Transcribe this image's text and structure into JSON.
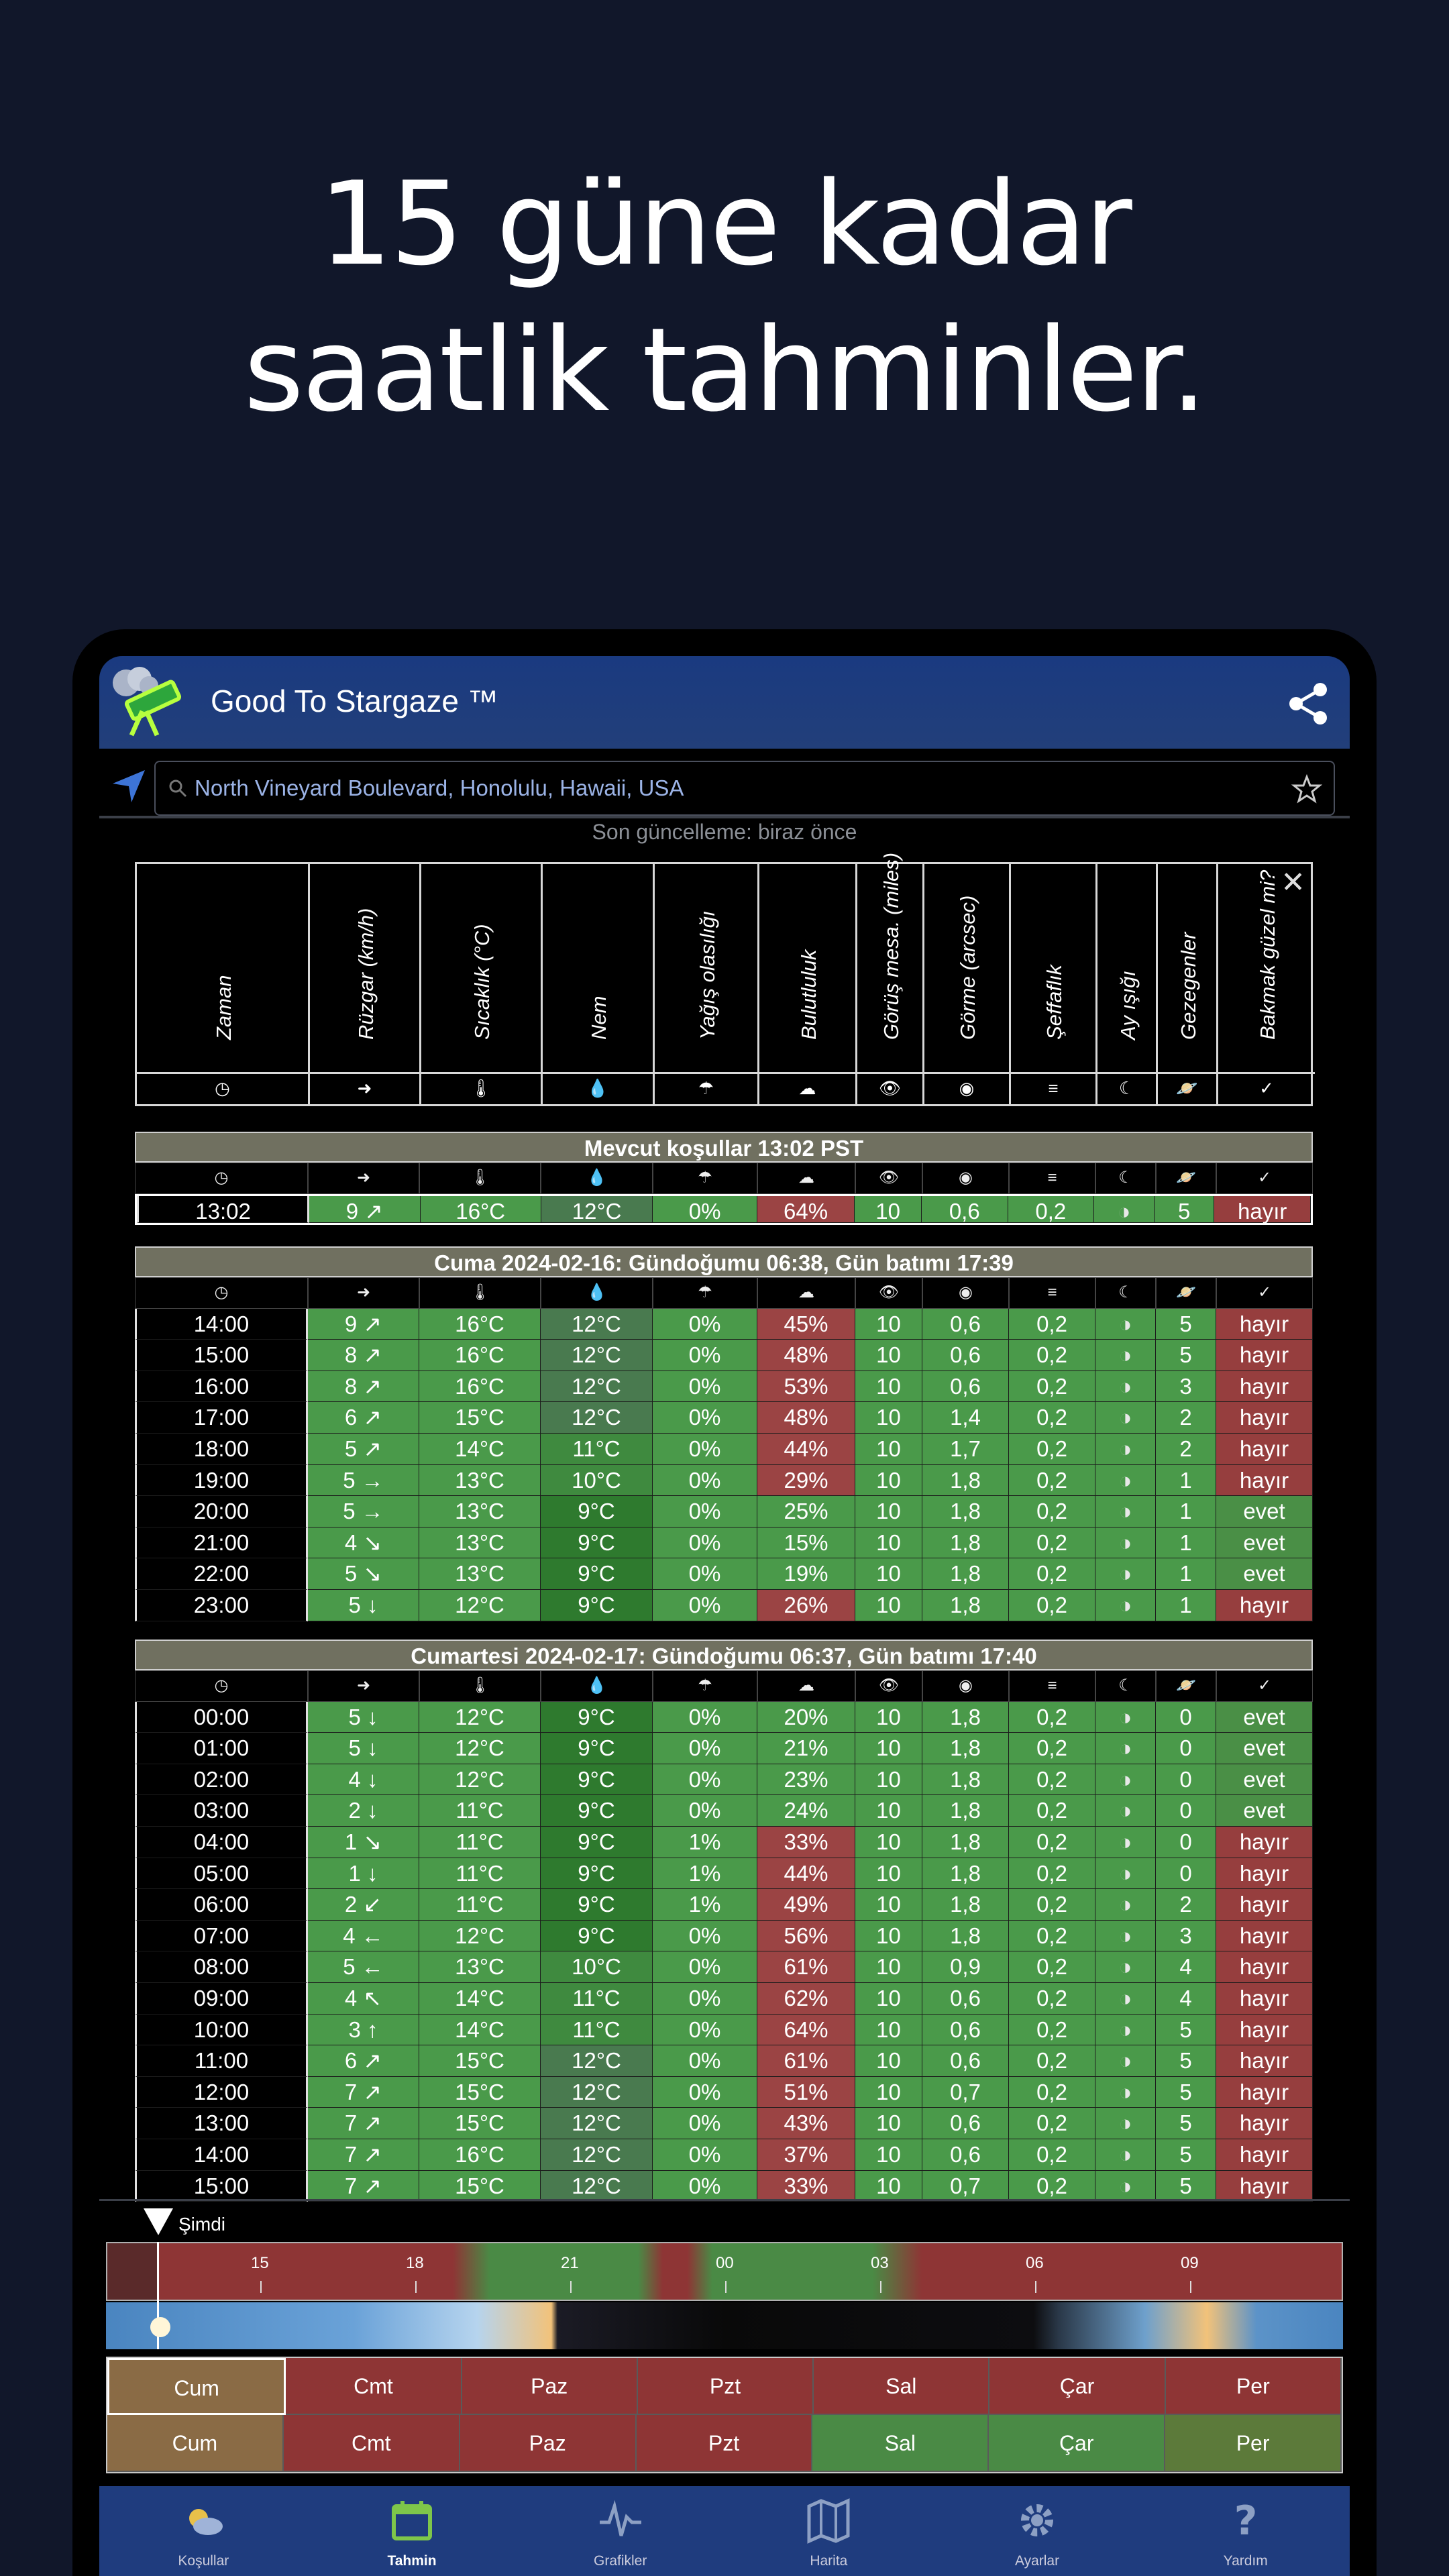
{
  "hero": {
    "line1": "15 güne kadar",
    "line2": "saatlik tahminler."
  },
  "app": {
    "title": "Good To Stargaze ™"
  },
  "search": {
    "value": "North Vineyard Boulevard, Honolulu, Hawaii, USA"
  },
  "updated": "Son güncelleme: biraz önce",
  "columns": [
    "Zaman",
    "Rüzgar (km/h)",
    "Sıcaklık (°C)",
    "Nem",
    "Yağış olasılığı",
    "Bulutluluk",
    "Görüş mesa. (miles)",
    "Görme (arcsec)",
    "Şeffaflık",
    "Ay ışığı",
    "Gezegenler",
    "Bakmak güzel mi?"
  ],
  "column_icons": [
    "clock-icon",
    "wind-icon",
    "thermometer-icon",
    "droplet-icon",
    "rain-icon",
    "cloud-icon",
    "eye-icon",
    "target-icon",
    "lines-icon",
    "moon-icon",
    "planet-icon",
    "check-icon"
  ],
  "current": {
    "title": "Mevcut koşullar 13:02 PST",
    "rows": [
      [
        "13:02",
        "9 ↗",
        "16°C",
        "12°C",
        "0%",
        "64%",
        "10",
        "0,6",
        "0,2",
        "◑",
        "5",
        "hayır"
      ]
    ]
  },
  "day1": {
    "title": "Cuma 2024-02-16: Gündoğumu 06:38, Gün batımı 17:39",
    "rows": [
      [
        "14:00",
        "9 ↗",
        "16°C",
        "12°C",
        "0%",
        "45%",
        "10",
        "0,6",
        "0,2",
        "◑",
        "5",
        "hayır"
      ],
      [
        "15:00",
        "8 ↗",
        "16°C",
        "12°C",
        "0%",
        "48%",
        "10",
        "0,6",
        "0,2",
        "◑",
        "5",
        "hayır"
      ],
      [
        "16:00",
        "8 ↗",
        "16°C",
        "12°C",
        "0%",
        "53%",
        "10",
        "0,6",
        "0,2",
        "◑",
        "3",
        "hayır"
      ],
      [
        "17:00",
        "6 ↗",
        "15°C",
        "12°C",
        "0%",
        "48%",
        "10",
        "1,4",
        "0,2",
        "◑",
        "2",
        "hayır"
      ],
      [
        "18:00",
        "5 ↗",
        "14°C",
        "11°C",
        "0%",
        "44%",
        "10",
        "1,7",
        "0,2",
        "◑",
        "2",
        "hayır"
      ],
      [
        "19:00",
        "5 →",
        "13°C",
        "10°C",
        "0%",
        "29%",
        "10",
        "1,8",
        "0,2",
        "◑",
        "1",
        "hayır"
      ],
      [
        "20:00",
        "5 →",
        "13°C",
        "9°C",
        "0%",
        "25%",
        "10",
        "1,8",
        "0,2",
        "◑",
        "1",
        "evet"
      ],
      [
        "21:00",
        "4 ↘",
        "13°C",
        "9°C",
        "0%",
        "15%",
        "10",
        "1,8",
        "0,2",
        "◑",
        "1",
        "evet"
      ],
      [
        "22:00",
        "5 ↘",
        "13°C",
        "9°C",
        "0%",
        "19%",
        "10",
        "1,8",
        "0,2",
        "◑",
        "1",
        "evet"
      ],
      [
        "23:00",
        "5 ↓",
        "12°C",
        "9°C",
        "0%",
        "26%",
        "10",
        "1,8",
        "0,2",
        "◑",
        "1",
        "hayır"
      ]
    ]
  },
  "day2": {
    "title": "Cumartesi 2024-02-17: Gündoğumu 06:37, Gün batımı 17:40",
    "rows": [
      [
        "00:00",
        "5 ↓",
        "12°C",
        "9°C",
        "0%",
        "20%",
        "10",
        "1,8",
        "0,2",
        "◑",
        "0",
        "evet"
      ],
      [
        "01:00",
        "5 ↓",
        "12°C",
        "9°C",
        "0%",
        "21%",
        "10",
        "1,8",
        "0,2",
        "◑",
        "0",
        "evet"
      ],
      [
        "02:00",
        "4 ↓",
        "12°C",
        "9°C",
        "0%",
        "23%",
        "10",
        "1,8",
        "0,2",
        "◑",
        "0",
        "evet"
      ],
      [
        "03:00",
        "2 ↓",
        "11°C",
        "9°C",
        "0%",
        "24%",
        "10",
        "1,8",
        "0,2",
        "◑",
        "0",
        "evet"
      ],
      [
        "04:00",
        "1 ↘",
        "11°C",
        "9°C",
        "1%",
        "33%",
        "10",
        "1,8",
        "0,2",
        "◑",
        "0",
        "hayır"
      ],
      [
        "05:00",
        "1 ↓",
        "11°C",
        "9°C",
        "1%",
        "44%",
        "10",
        "1,8",
        "0,2",
        "◑",
        "0",
        "hayır"
      ],
      [
        "06:00",
        "2 ↙",
        "11°C",
        "9°C",
        "1%",
        "49%",
        "10",
        "1,8",
        "0,2",
        "◑",
        "2",
        "hayır"
      ],
      [
        "07:00",
        "4 ←",
        "12°C",
        "9°C",
        "0%",
        "56%",
        "10",
        "1,8",
        "0,2",
        "◑",
        "3",
        "hayır"
      ],
      [
        "08:00",
        "5 ←",
        "13°C",
        "10°C",
        "0%",
        "61%",
        "10",
        "0,9",
        "0,2",
        "◑",
        "4",
        "hayır"
      ],
      [
        "09:00",
        "4 ↖",
        "14°C",
        "11°C",
        "0%",
        "62%",
        "10",
        "0,6",
        "0,2",
        "◑",
        "4",
        "hayır"
      ],
      [
        "10:00",
        "3 ↑",
        "14°C",
        "11°C",
        "0%",
        "64%",
        "10",
        "0,6",
        "0,2",
        "◑",
        "5",
        "hayır"
      ],
      [
        "11:00",
        "6 ↗",
        "15°C",
        "12°C",
        "0%",
        "61%",
        "10",
        "0,6",
        "0,2",
        "◑",
        "5",
        "hayır"
      ],
      [
        "12:00",
        "7 ↗",
        "15°C",
        "12°C",
        "0%",
        "51%",
        "10",
        "0,7",
        "0,2",
        "◑",
        "5",
        "hayır"
      ],
      [
        "13:00",
        "7 ↗",
        "15°C",
        "12°C",
        "0%",
        "43%",
        "10",
        "0,6",
        "0,2",
        "◑",
        "5",
        "hayır"
      ],
      [
        "14:00",
        "7 ↗",
        "16°C",
        "12°C",
        "0%",
        "37%",
        "10",
        "0,6",
        "0,2",
        "◑",
        "5",
        "hayır"
      ],
      [
        "15:00",
        "7 ↗",
        "15°C",
        "12°C",
        "0%",
        "33%",
        "10",
        "0,7",
        "0,2",
        "◑",
        "5",
        "hayır"
      ]
    ]
  },
  "timeline": {
    "now_label": "Şimdi",
    "hours": [
      "15",
      "18",
      "21",
      "00",
      "03",
      "06",
      "09"
    ]
  },
  "days_row1": [
    "Cum",
    "Cmt",
    "Paz",
    "Pzt",
    "Sal",
    "Çar",
    "Per"
  ],
  "days_row2": [
    "Cum",
    "Cmt",
    "Paz",
    "Pzt",
    "Sal",
    "Çar",
    "Per"
  ],
  "nav": [
    "Koşullar",
    "Tahmin",
    "Grafikler",
    "Harita",
    "Ayarlar",
    "Yardım"
  ],
  "colors": {
    "background": "#11172a",
    "good": "#4a8f46",
    "bad": "#963e3e",
    "appbar": "#1f3c7e"
  }
}
